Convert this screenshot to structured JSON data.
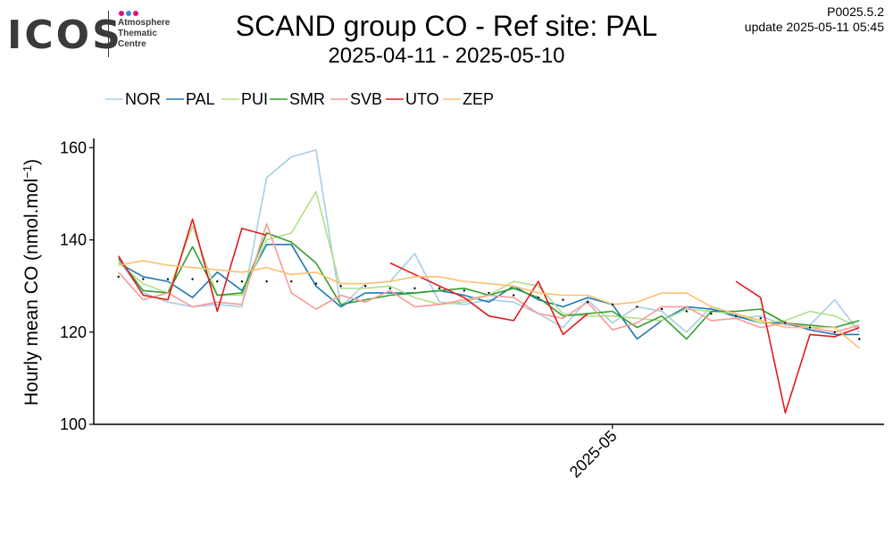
{
  "header": {
    "logo_text": "ICOS",
    "logo_sub": [
      "Atmosphere",
      "Thematic",
      "Centre"
    ],
    "logo_dot_colors": [
      "#e2127a",
      "#3a8dde",
      "#e2127a"
    ],
    "title": "SCAND group CO - Ref site: PAL",
    "subtitle": "2025-04-11 - 2025-05-10",
    "version": "P0025.5.2",
    "update": "update  2025-05-11 05:45"
  },
  "chart_data": {
    "type": "line",
    "title": "SCAND group CO - Ref site: PAL",
    "subtitle": "2025-04-11 - 2025-05-10",
    "xlabel": "",
    "ylabel": "Hourly mean  CO (nmol.mol-1)",
    "ylabel_main": "Hourly mean  CO (nmol.mol",
    "ylabel_sup": "−1",
    "ylabel_end": ")",
    "xlim": [
      "2025-04-10",
      "2025-05-12"
    ],
    "ylim": [
      100,
      162
    ],
    "yticks": [
      100,
      120,
      140,
      160
    ],
    "xticks": [
      {
        "value": "2025-05-01",
        "label": "2025-05"
      }
    ],
    "grid": false,
    "legend_position": "top-left",
    "series": [
      {
        "name": "NOR",
        "color": "#a6cee3",
        "points": [
          [
            "2025-04-11",
            135.5
          ],
          [
            "2025-04-12",
            128.5
          ],
          [
            "2025-04-13",
            126.5
          ],
          [
            "2025-04-14",
            125.5
          ],
          [
            "2025-04-15",
            126
          ],
          [
            "2025-04-16",
            125.5
          ],
          [
            "2025-04-17",
            153.5
          ],
          [
            "2025-04-18",
            158
          ],
          [
            "2025-04-19",
            159.5
          ],
          [
            "2025-04-20",
            125.5
          ],
          [
            "2025-04-21",
            130.5
          ],
          [
            "2025-04-22",
            131
          ],
          [
            "2025-04-23",
            137
          ],
          [
            "2025-04-24",
            126.5
          ],
          [
            "2025-04-25",
            126
          ],
          [
            "2025-04-26",
            127
          ],
          [
            "2025-04-27",
            126.5
          ],
          [
            "2025-04-28",
            124
          ],
          [
            "2025-04-29",
            121
          ],
          [
            "2025-04-30",
            127
          ],
          [
            "2025-05-01",
            122
          ],
          [
            "2025-05-02",
            125.5
          ],
          [
            "2025-05-03",
            124.5
          ],
          [
            "2025-05-04",
            120
          ],
          [
            "2025-05-05",
            125.5
          ],
          [
            "2025-05-06",
            123
          ],
          [
            "2025-05-07",
            123.5
          ],
          [
            "2025-05-08",
            121.5
          ],
          [
            "2025-05-09",
            121.5
          ],
          [
            "2025-05-10",
            127
          ],
          [
            "2025-05-11",
            120
          ]
        ]
      },
      {
        "name": "PAL",
        "color": "#1f78b4",
        "points": [
          [
            "2025-04-11",
            135
          ],
          [
            "2025-04-12",
            132
          ],
          [
            "2025-04-13",
            131
          ],
          [
            "2025-04-14",
            127.5
          ],
          [
            "2025-04-15",
            133
          ],
          [
            "2025-04-16",
            129
          ],
          [
            "2025-04-17",
            139
          ],
          [
            "2025-04-18",
            139
          ],
          [
            "2025-04-19",
            130
          ],
          [
            "2025-04-20",
            125.5
          ],
          [
            "2025-04-21",
            128.5
          ],
          [
            "2025-04-22",
            128.5
          ],
          [
            "2025-04-23",
            128.5
          ],
          [
            "2025-04-24",
            129
          ],
          [
            "2025-04-25",
            128
          ],
          [
            "2025-04-26",
            126.5
          ],
          [
            "2025-04-27",
            130
          ],
          [
            "2025-04-28",
            127
          ],
          [
            "2025-04-29",
            125.5
          ],
          [
            "2025-04-30",
            127.5
          ],
          [
            "2025-05-01",
            126
          ],
          [
            "2025-05-02",
            118.5
          ],
          [
            "2025-05-03",
            122.5
          ],
          [
            "2025-05-04",
            125.5
          ],
          [
            "2025-05-05",
            125
          ],
          [
            "2025-05-06",
            123.5
          ],
          [
            "2025-05-07",
            122
          ],
          [
            "2025-05-08",
            122
          ],
          [
            "2025-05-09",
            120.5
          ],
          [
            "2025-05-10",
            119.5
          ],
          [
            "2025-05-11",
            119.5
          ]
        ]
      },
      {
        "name": "PUI",
        "color": "#b2df8a",
        "points": [
          [
            "2025-04-11",
            135
          ],
          [
            "2025-04-12",
            130.5
          ],
          [
            "2025-04-13",
            128.5
          ],
          [
            "2025-04-14",
            143
          ],
          [
            "2025-04-15",
            128
          ],
          [
            "2025-04-16",
            128
          ],
          [
            "2025-04-17",
            140
          ],
          [
            "2025-04-18",
            141.5
          ],
          [
            "2025-04-19",
            150.5
          ],
          [
            "2025-04-20",
            129.5
          ],
          [
            "2025-04-21",
            129.5
          ],
          [
            "2025-04-22",
            130
          ],
          [
            "2025-04-23",
            127.5
          ],
          [
            "2025-04-24",
            126
          ],
          [
            "2025-04-25",
            126.5
          ],
          [
            "2025-04-26",
            128
          ],
          [
            "2025-04-27",
            131
          ],
          [
            "2025-04-28",
            130
          ],
          [
            "2025-04-29",
            124
          ],
          [
            "2025-04-30",
            123.5
          ],
          [
            "2025-05-01",
            123.5
          ],
          [
            "2025-05-02",
            123
          ],
          [
            "2025-05-03",
            122.5
          ],
          [
            "2025-05-04",
            125
          ],
          [
            "2025-05-05",
            124.5
          ],
          [
            "2025-05-06",
            124
          ],
          [
            "2025-05-07",
            122
          ],
          [
            "2025-05-08",
            122.5
          ],
          [
            "2025-05-09",
            124.5
          ],
          [
            "2025-05-10",
            123.5
          ],
          [
            "2025-05-11",
            121
          ]
        ]
      },
      {
        "name": "SMR",
        "color": "#33a02c",
        "points": [
          [
            "2025-04-11",
            136
          ],
          [
            "2025-04-12",
            129
          ],
          [
            "2025-04-13",
            128.5
          ],
          [
            "2025-04-14",
            138.5
          ],
          [
            "2025-04-15",
            128
          ],
          [
            "2025-04-16",
            128.5
          ],
          [
            "2025-04-17",
            141.5
          ],
          [
            "2025-04-18",
            139.5
          ],
          [
            "2025-04-19",
            135
          ],
          [
            "2025-04-20",
            126
          ],
          [
            "2025-04-21",
            127
          ],
          [
            "2025-04-22",
            128
          ],
          [
            "2025-04-23",
            128.5
          ],
          [
            "2025-04-24",
            129
          ],
          [
            "2025-04-25",
            129.5
          ],
          [
            "2025-04-26",
            128
          ],
          [
            "2025-04-27",
            129.5
          ],
          [
            "2025-04-28",
            127.5
          ],
          [
            "2025-04-29",
            123.5
          ],
          [
            "2025-04-30",
            124
          ],
          [
            "2025-05-01",
            124.5
          ],
          [
            "2025-05-02",
            121
          ],
          [
            "2025-05-03",
            123.5
          ],
          [
            "2025-05-04",
            118.5
          ],
          [
            "2025-05-05",
            124.5
          ],
          [
            "2025-05-06",
            124.5
          ],
          [
            "2025-05-07",
            125
          ],
          [
            "2025-05-08",
            122
          ],
          [
            "2025-05-09",
            121.5
          ],
          [
            "2025-05-10",
            121
          ],
          [
            "2025-05-11",
            122.5
          ]
        ]
      },
      {
        "name": "SVB",
        "color": "#fb9a99",
        "points": [
          [
            "2025-04-11",
            133
          ],
          [
            "2025-04-12",
            127
          ],
          [
            "2025-04-13",
            128.5
          ],
          [
            "2025-04-14",
            125.5
          ],
          [
            "2025-04-15",
            126.5
          ],
          [
            "2025-04-16",
            126
          ],
          [
            "2025-04-17",
            143.5
          ],
          [
            "2025-04-18",
            128.5
          ],
          [
            "2025-04-19",
            125
          ],
          [
            "2025-04-20",
            128
          ],
          [
            "2025-04-21",
            126.5
          ],
          [
            "2025-04-22",
            129
          ],
          [
            "2025-04-23",
            125.5
          ],
          [
            "2025-04-24",
            126
          ],
          [
            "2025-04-25",
            127
          ],
          [
            "2025-04-26",
            128
          ],
          [
            "2025-04-27",
            127.5
          ],
          [
            "2025-04-28",
            124
          ],
          [
            "2025-04-29",
            123
          ],
          [
            "2025-04-30",
            126.5
          ],
          [
            "2025-05-01",
            120.5
          ],
          [
            "2025-05-02",
            122
          ],
          [
            "2025-05-03",
            125.5
          ],
          [
            "2025-05-04",
            125.5
          ],
          [
            "2025-05-05",
            122.5
          ],
          [
            "2025-05-06",
            123
          ],
          [
            "2025-05-07",
            121
          ],
          [
            "2025-05-08",
            122
          ],
          [
            "2025-05-09",
            121
          ],
          [
            "2025-05-10",
            120
          ],
          [
            "2025-05-11",
            121.5
          ]
        ]
      },
      {
        "name": "UTO",
        "color": "#e31a1c",
        "points": [
          [
            "2025-04-11",
            136.5
          ],
          [
            "2025-04-12",
            128
          ],
          [
            "2025-04-13",
            127
          ],
          [
            "2025-04-14",
            144.5
          ],
          [
            "2025-04-15",
            124.5
          ],
          [
            "2025-04-16",
            142.5
          ],
          [
            "2025-04-17",
            141
          ],
          null,
          [
            "2025-04-22",
            135
          ],
          [
            "2025-04-23",
            132.5
          ],
          [
            "2025-04-24",
            130
          ],
          [
            "2025-04-25",
            127.5
          ],
          [
            "2025-04-26",
            123.5
          ],
          [
            "2025-04-27",
            122.5
          ],
          [
            "2025-04-28",
            131
          ],
          [
            "2025-04-29",
            119.5
          ],
          [
            "2025-04-30",
            124
          ],
          null,
          [
            "2025-05-06",
            131
          ],
          [
            "2025-05-07",
            127.5
          ],
          [
            "2025-05-08",
            102.5
          ],
          [
            "2025-05-09",
            119.5
          ],
          [
            "2025-05-10",
            119
          ],
          [
            "2025-05-11",
            121
          ]
        ]
      },
      {
        "name": "ZEP",
        "color": "#fdbf6f",
        "points": [
          [
            "2025-04-11",
            134.5
          ],
          [
            "2025-04-12",
            135.5
          ],
          [
            "2025-04-13",
            134.5
          ],
          [
            "2025-04-14",
            134
          ],
          [
            "2025-04-15",
            133.5
          ],
          [
            "2025-04-16",
            133
          ],
          [
            "2025-04-17",
            134
          ],
          [
            "2025-04-18",
            132.5
          ],
          [
            "2025-04-19",
            133
          ],
          [
            "2025-04-20",
            130.5
          ],
          [
            "2025-04-21",
            130.5
          ],
          [
            "2025-04-22",
            131
          ],
          [
            "2025-04-23",
            132
          ],
          [
            "2025-04-24",
            132
          ],
          [
            "2025-04-25",
            131
          ],
          [
            "2025-04-26",
            130.5
          ],
          [
            "2025-04-27",
            130
          ],
          [
            "2025-04-28",
            128.5
          ],
          [
            "2025-04-29",
            128
          ],
          [
            "2025-04-30",
            128
          ],
          [
            "2025-05-01",
            126
          ],
          [
            "2025-05-02",
            126.5
          ],
          [
            "2025-05-03",
            128.5
          ],
          [
            "2025-05-04",
            128.5
          ],
          [
            "2025-05-05",
            125.5
          ],
          [
            "2025-05-06",
            124
          ],
          [
            "2025-05-07",
            122.5
          ],
          [
            "2025-05-08",
            121
          ],
          [
            "2025-05-09",
            121
          ],
          [
            "2025-05-10",
            121
          ],
          [
            "2025-05-11",
            116.5
          ]
        ]
      }
    ],
    "reference_points": [
      [
        "2025-04-11",
        132
      ],
      [
        "2025-04-12",
        131.5
      ],
      [
        "2025-04-13",
        131.5
      ],
      [
        "2025-04-14",
        131.5
      ],
      [
        "2025-04-15",
        131
      ],
      [
        "2025-04-16",
        131
      ],
      [
        "2025-04-17",
        131
      ],
      [
        "2025-04-18",
        131
      ],
      [
        "2025-04-19",
        130.5
      ],
      [
        "2025-04-20",
        130
      ],
      [
        "2025-04-21",
        130
      ],
      [
        "2025-04-22",
        129.5
      ],
      [
        "2025-04-23",
        129.5
      ],
      [
        "2025-04-24",
        129.5
      ],
      [
        "2025-04-25",
        129
      ],
      [
        "2025-04-26",
        128.5
      ],
      [
        "2025-04-27",
        128
      ],
      [
        "2025-04-28",
        127.5
      ],
      [
        "2025-04-29",
        127
      ],
      [
        "2025-04-30",
        126.5
      ],
      [
        "2025-05-01",
        126
      ],
      [
        "2025-05-02",
        125.5
      ],
      [
        "2025-05-03",
        125
      ],
      [
        "2025-05-04",
        124.5
      ],
      [
        "2025-05-05",
        124
      ],
      [
        "2025-05-06",
        123.5
      ],
      [
        "2025-05-07",
        123
      ],
      [
        "2025-05-08",
        122
      ],
      [
        "2025-05-09",
        121
      ],
      [
        "2025-05-10",
        120
      ],
      [
        "2025-05-11",
        118.5
      ]
    ]
  }
}
